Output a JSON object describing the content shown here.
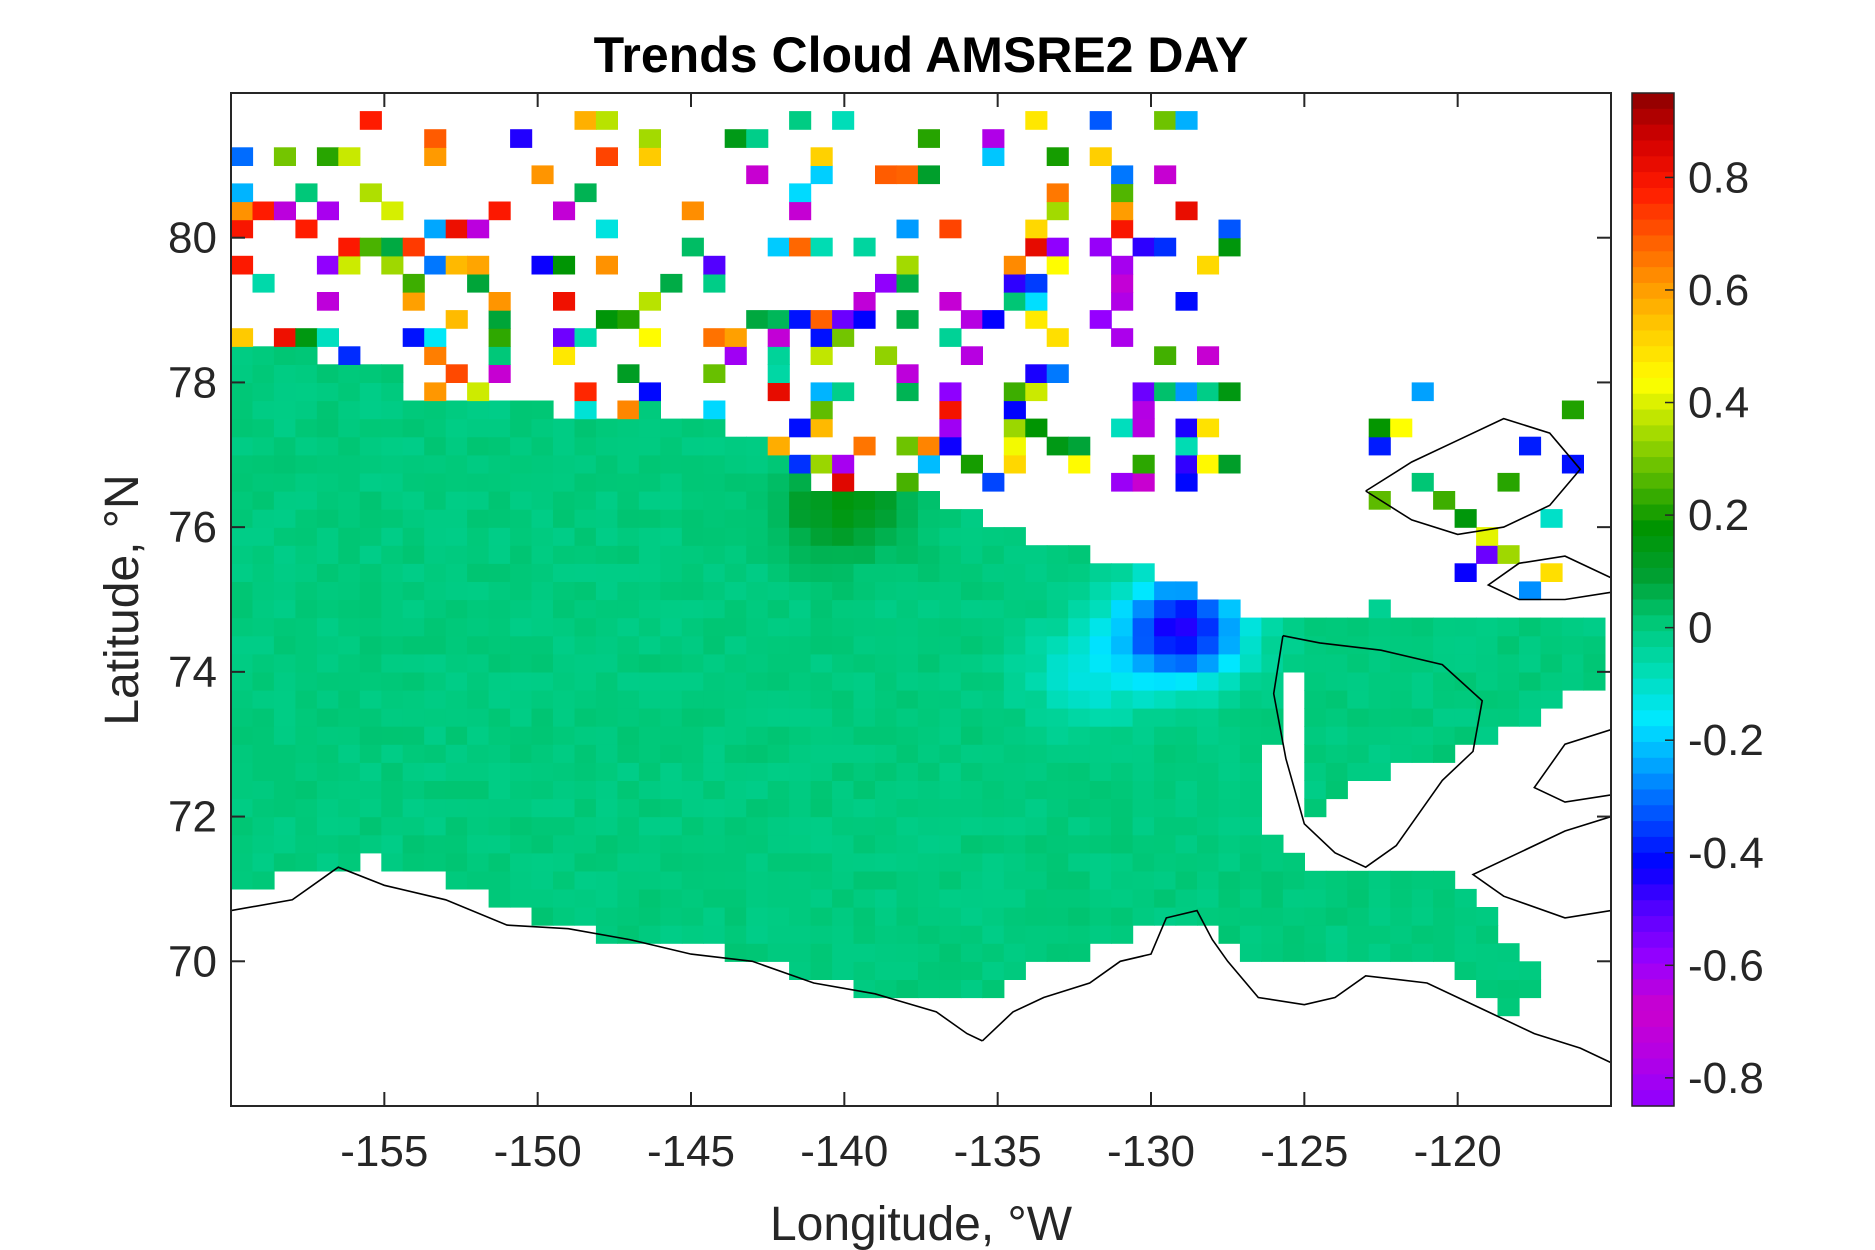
{
  "chart_data": {
    "type": "heatmap",
    "title": "Trends Cloud AMSRE2 DAY",
    "xlabel": "Longitude, °W",
    "ylabel": "Latitude, °N",
    "xlim": [
      -160,
      -115
    ],
    "ylim": [
      68,
      82
    ],
    "xticks": [
      -155,
      -150,
      -145,
      -140,
      -135,
      -130,
      -125,
      -120
    ],
    "yticks": [
      70,
      72,
      74,
      76,
      78,
      80
    ],
    "xtick_labels": [
      "-155",
      "-150",
      "-145",
      "-140",
      "-135",
      "-130",
      "-125",
      "-120"
    ],
    "ytick_labels": [
      "70",
      "72",
      "74",
      "76",
      "78",
      "80"
    ],
    "colorbar": {
      "clim": [
        -0.85,
        0.95
      ],
      "ticks": [
        0.8,
        0.6,
        0.4,
        0.2,
        0,
        -0.2,
        -0.4,
        -0.6,
        -0.8
      ],
      "tick_labels": [
        "0.8",
        "0.6",
        "0.4",
        "0.2",
        "0",
        "-0.2",
        "-0.4",
        "-0.6",
        "-0.8"
      ],
      "colormap": [
        "#8f00ff",
        "#b300e6",
        "#cc00cc",
        "#9900ff",
        "#5a00ff",
        "#0000ff",
        "#0050ff",
        "#00a0ff",
        "#00e8ff",
        "#00ddb5",
        "#00c878",
        "#00a030",
        "#009400",
        "#55b800",
        "#aadd00",
        "#ffff00",
        "#ffd000",
        "#ff9a00",
        "#ff5a00",
        "#ff1a00",
        "#d40000",
        "#8b0000"
      ]
    },
    "field": {
      "background_value": 0.0,
      "features": [
        {
          "name": "strong negative core",
          "lon": -129,
          "lat": 74.6,
          "value": -0.45
        },
        {
          "name": "negative fringe",
          "lon": -132,
          "lat": 74.0,
          "value": -0.12
        },
        {
          "name": "weak positive margin",
          "lon": -140,
          "lat": 76.3,
          "value": 0.15
        }
      ]
    },
    "grid": false
  },
  "colors": {
    "axis": "#262626",
    "coastline": "#000000",
    "background": "#ffffff",
    "base_field": "#00dba8"
  }
}
